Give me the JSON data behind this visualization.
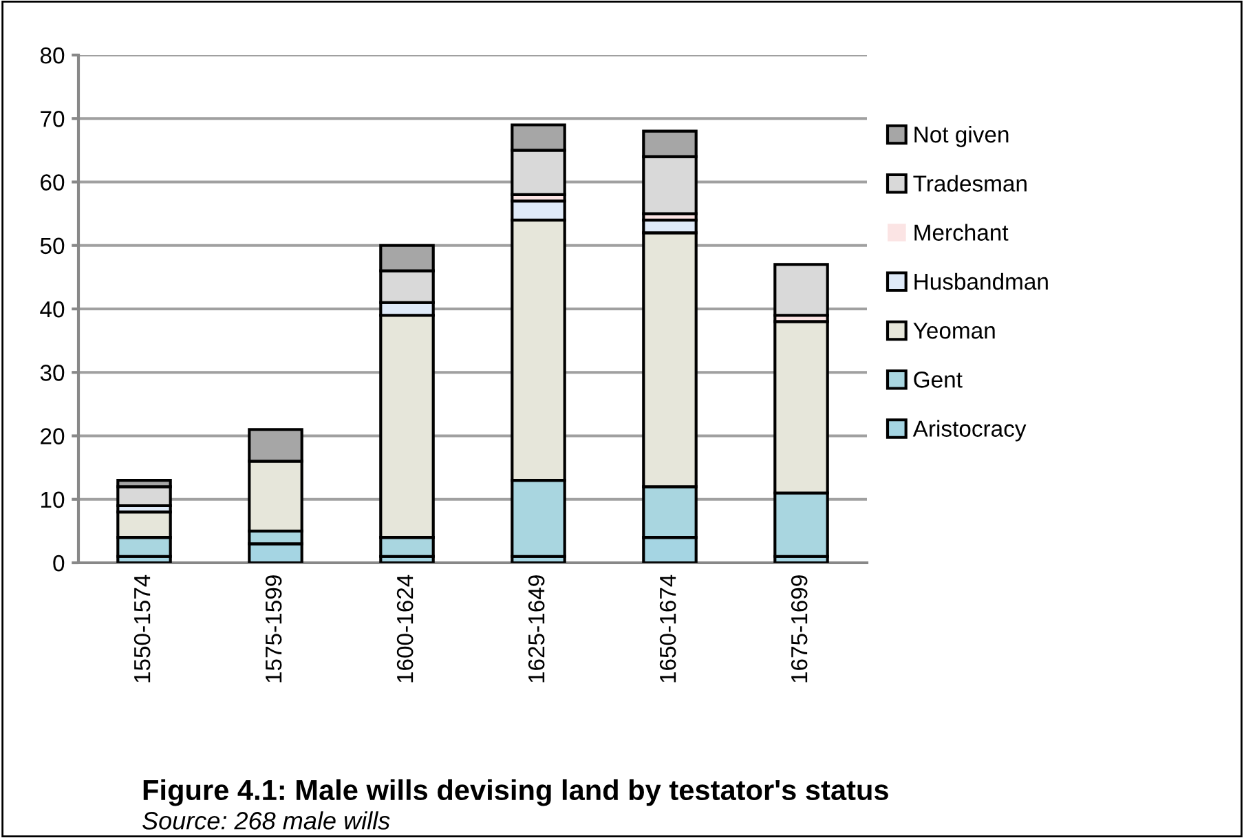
{
  "chart_data": {
    "type": "bar",
    "stacked": true,
    "title": "Figure 4.1: Male wills devising land by testator's status",
    "annotations": [
      "Source: 268 male wills"
    ],
    "categories": [
      "1550-1574",
      "1575-1599",
      "1600-1624",
      "1625-1649",
      "1650-1674",
      "1675-1699"
    ],
    "series": [
      {
        "name": "Aristocracy",
        "color": "#a5d5e3",
        "values": [
          1,
          3,
          1,
          1,
          4,
          1
        ]
      },
      {
        "name": "Gent",
        "color": "#a9d6e0",
        "values": [
          3,
          2,
          3,
          12,
          8,
          10
        ]
      },
      {
        "name": "Yeoman",
        "color": "#e6e6da",
        "values": [
          4,
          11,
          35,
          41,
          40,
          27
        ]
      },
      {
        "name": "Husbandman",
        "color": "#dfeaf8",
        "values": [
          1,
          0,
          2,
          3,
          2,
          0
        ]
      },
      {
        "name": "Merchant",
        "color": "#fbe4e4",
        "values": [
          0,
          0,
          0,
          1,
          1,
          1
        ]
      },
      {
        "name": "Tradesman",
        "color": "#d9d9d9",
        "values": [
          3,
          0,
          5,
          7,
          9,
          8
        ]
      },
      {
        "name": "Not given",
        "color": "#a6a6a6",
        "values": [
          1,
          5,
          4,
          4,
          4,
          0
        ]
      }
    ],
    "ylim": [
      0,
      80
    ],
    "yticks": [
      0,
      10,
      20,
      30,
      40,
      50,
      60,
      70,
      80
    ],
    "grid": "y",
    "legend": "right"
  }
}
